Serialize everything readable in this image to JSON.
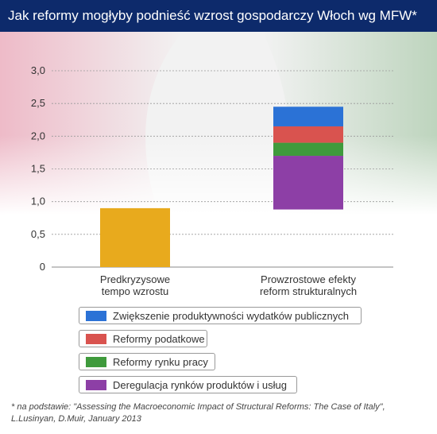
{
  "title": "Jak reformy mogłyby podnieść wzrost gospodarczy Włoch wg MFW*",
  "chart_data": {
    "type": "bar",
    "stacked": true,
    "categories": [
      "Predkryzysowe\ntempo wzrostu",
      "Prowzrostowe efekty\nreform strukturalnych"
    ],
    "yticks": [
      "0",
      "0,5",
      "1,0",
      "1,5",
      "2,0",
      "2,5",
      "3,0"
    ],
    "ylim": [
      0,
      3.0
    ],
    "grid": true,
    "bars": [
      {
        "category": 0,
        "segments": [
          {
            "name": "",
            "from": 0,
            "to": 0.9,
            "color": "#e8aa1d"
          }
        ]
      },
      {
        "category": 1,
        "segments": [
          {
            "name": "Deregulacja rynków produktów i usług",
            "from": 0.88,
            "to": 1.7,
            "color": "#8d3fa6"
          },
          {
            "name": "Reformy rynku pracy",
            "from": 1.7,
            "to": 1.9,
            "color": "#3f9a3c"
          },
          {
            "name": "Reformy podatkowe",
            "from": 1.9,
            "to": 2.15,
            "color": "#d9534f"
          },
          {
            "name": "Zwiększenie produktywności wydatków publicznych",
            "from": 2.15,
            "to": 2.45,
            "color": "#2b72d6"
          }
        ]
      }
    ],
    "legend": [
      {
        "label": "Zwiększenie produktywności wydatków publicznych",
        "color": "#2b72d6"
      },
      {
        "label": "Reformy podatkowe",
        "color": "#d9534f"
      },
      {
        "label": "Reformy rynku pracy",
        "color": "#3f9a3c"
      },
      {
        "label": "Deregulacja rynków produktów i usług",
        "color": "#8d3fa6"
      }
    ]
  },
  "footnote": "* na podstawie: \"Assessing the Macroeconomic Impact of Structural Reforms: The Case of Italy\", L.Lusinyan, D.Muir, January 2013"
}
